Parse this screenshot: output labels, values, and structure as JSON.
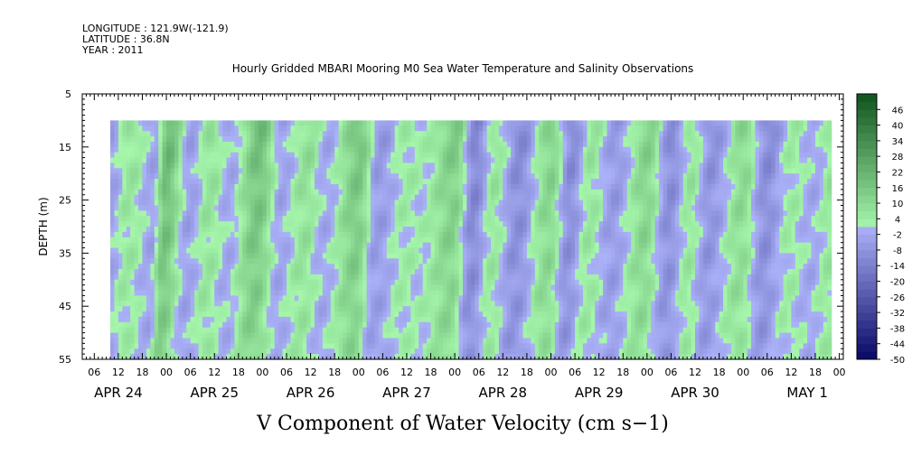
{
  "header": {
    "longitude": "LONGITUDE : 121.9W(-121.9)",
    "latitude": "LATITUDE : 36.8N",
    "year": "YEAR : 2011"
  },
  "chart_data": {
    "type": "heatmap",
    "title": "Hourly Gridded MBARI Mooring M0 Sea Water Temperature and Salinity Observations",
    "xlabel": "V Component of Water Velocity (cm s−1)",
    "ylabel": "DEPTH (m)",
    "y_range": [
      5,
      55
    ],
    "y_ticks": [
      5,
      15,
      25,
      35,
      45,
      55
    ],
    "y_inverted": true,
    "data_depth_range": [
      10,
      55
    ],
    "x_start_hour": -21,
    "x_end_hour": 169,
    "data_x_start_hour": -14,
    "data_x_end_hour": 166,
    "hour_ticks": [
      {
        "h": -18,
        "label": "06"
      },
      {
        "h": -12,
        "label": "12"
      },
      {
        "h": -6,
        "label": "18"
      },
      {
        "h": 0,
        "label": "00"
      },
      {
        "h": 6,
        "label": "06"
      },
      {
        "h": 12,
        "label": "12"
      },
      {
        "h": 18,
        "label": "18"
      },
      {
        "h": 24,
        "label": "00"
      },
      {
        "h": 30,
        "label": "06"
      },
      {
        "h": 36,
        "label": "12"
      },
      {
        "h": 42,
        "label": "18"
      },
      {
        "h": 48,
        "label": "00"
      },
      {
        "h": 54,
        "label": "06"
      },
      {
        "h": 60,
        "label": "12"
      },
      {
        "h": 66,
        "label": "18"
      },
      {
        "h": 72,
        "label": "00"
      },
      {
        "h": 78,
        "label": "06"
      },
      {
        "h": 84,
        "label": "12"
      },
      {
        "h": 90,
        "label": "18"
      },
      {
        "h": 96,
        "label": "00"
      },
      {
        "h": 102,
        "label": "06"
      },
      {
        "h": 108,
        "label": "12"
      },
      {
        "h": 114,
        "label": "18"
      },
      {
        "h": 120,
        "label": "00"
      },
      {
        "h": 126,
        "label": "06"
      },
      {
        "h": 132,
        "label": "12"
      },
      {
        "h": 138,
        "label": "18"
      },
      {
        "h": 144,
        "label": "00"
      },
      {
        "h": 150,
        "label": "06"
      },
      {
        "h": 156,
        "label": "12"
      },
      {
        "h": 162,
        "label": "18"
      },
      {
        "h": 168,
        "label": "00"
      }
    ],
    "day_labels": [
      {
        "h": -12,
        "label": "APR 24"
      },
      {
        "h": 12,
        "label": "APR 25"
      },
      {
        "h": 36,
        "label": "APR 26"
      },
      {
        "h": 60,
        "label": "APR 27"
      },
      {
        "h": 84,
        "label": "APR 28"
      },
      {
        "h": 108,
        "label": "APR 29"
      },
      {
        "h": 132,
        "label": "APR 30"
      },
      {
        "h": 160,
        "label": "MAY  1"
      }
    ],
    "colorbar": {
      "levels": [
        "-50",
        "-44",
        "-38",
        "-32",
        "-26",
        "-20",
        "-14",
        "-8",
        "-2",
        "4",
        "10",
        "16",
        "22",
        "28",
        "34",
        "40",
        "46"
      ],
      "min": -50,
      "max": 52,
      "step": 3
    },
    "velocity_bands": [
      {
        "h": -14,
        "v": -4
      },
      {
        "h": -9,
        "v": 6
      },
      {
        "h": -3,
        "v": -3
      },
      {
        "h": 0,
        "v": 20
      },
      {
        "h": 6,
        "v": -4
      },
      {
        "h": 11,
        "v": 7
      },
      {
        "h": 16,
        "v": -2
      },
      {
        "h": 23,
        "v": 18
      },
      {
        "h": 29,
        "v": -3
      },
      {
        "h": 35,
        "v": 8
      },
      {
        "h": 40,
        "v": -2
      },
      {
        "h": 48,
        "v": 16
      },
      {
        "h": 53,
        "v": -6
      },
      {
        "h": 60,
        "v": 4
      },
      {
        "h": 64,
        "v": 2
      },
      {
        "h": 72,
        "v": 14
      },
      {
        "h": 77,
        "v": -12
      },
      {
        "h": 82,
        "v": 6
      },
      {
        "h": 88,
        "v": -10
      },
      {
        "h": 96,
        "v": 12
      },
      {
        "h": 101,
        "v": -10
      },
      {
        "h": 106,
        "v": 6
      },
      {
        "h": 112,
        "v": -6
      },
      {
        "h": 120,
        "v": 12
      },
      {
        "h": 126,
        "v": -10
      },
      {
        "h": 131,
        "v": 6
      },
      {
        "h": 136,
        "v": -8
      },
      {
        "h": 144,
        "v": 10
      },
      {
        "h": 150,
        "v": -10
      },
      {
        "h": 156,
        "v": 4
      },
      {
        "h": 162,
        "v": -2
      },
      {
        "h": 166,
        "v": 6
      }
    ]
  }
}
